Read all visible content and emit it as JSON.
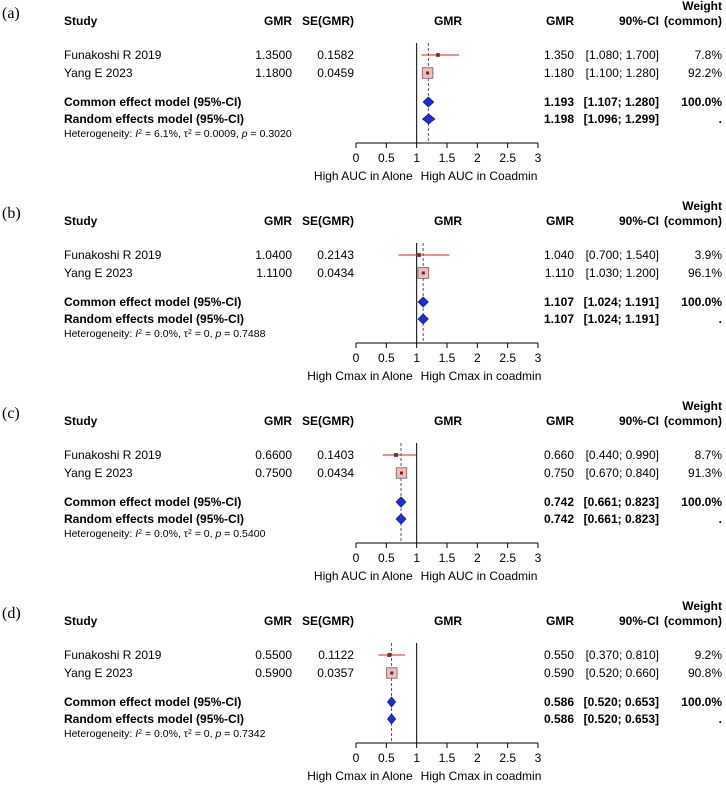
{
  "headers": {
    "study": "Study",
    "gmr": "GMR",
    "se": "SE(GMR)",
    "plot": "GMR",
    "gmr_right": "GMR",
    "ci": "90%-CI",
    "weight_line1": "Weight",
    "weight_line2": "(common)"
  },
  "chart_data": [
    {
      "type": "forest",
      "panel_label": "(a)",
      "xlim": [
        0,
        3
      ],
      "ticks": [
        "0",
        "0.5",
        "1",
        "1.5",
        "2",
        "2.5",
        "3"
      ],
      "reference_line": 1,
      "axis_left_label": "High AUC in Alone",
      "axis_right_label": "High AUC in Coadmin",
      "studies": [
        {
          "name": "Funakoshi R 2019",
          "gmr": "1.3500",
          "se": "0.1582",
          "est": 1.35,
          "lo": 1.08,
          "hi": 1.7,
          "est_text": "1.350",
          "ci_text": "[1.080; 1.700]",
          "weight": "7.8%",
          "w": 7.8
        },
        {
          "name": "Yang E 2023",
          "gmr": "1.1800",
          "se": "0.0459",
          "est": 1.18,
          "lo": 1.1,
          "hi": 1.28,
          "est_text": "1.180",
          "ci_text": "[1.100; 1.280]",
          "weight": "92.2%",
          "w": 92.2
        }
      ],
      "common": {
        "label": "Common effect model (95%-CI)",
        "est": 1.193,
        "lo": 1.107,
        "hi": 1.28,
        "est_text": "1.193",
        "ci_text": "[1.107; 1.280]",
        "weight": "100.0%"
      },
      "random": {
        "label": "Random effects model (95%-CI)",
        "est": 1.198,
        "lo": 1.096,
        "hi": 1.299,
        "est_text": "1.198",
        "ci_text": "[1.096; 1.299]",
        "weight": "."
      },
      "heterogeneity": {
        "prefix": "Heterogeneity: ",
        "i2": "6.1%",
        "tau2": "0.0009",
        "p": "0.3020"
      }
    },
    {
      "type": "forest",
      "panel_label": "(b)",
      "xlim": [
        0,
        3
      ],
      "ticks": [
        "0",
        "0.5",
        "1",
        "1.5",
        "2",
        "2.5",
        "3"
      ],
      "reference_line": 1,
      "axis_left_label": "High Cmax in Alone",
      "axis_right_label": "High Cmax in coadmin",
      "studies": [
        {
          "name": "Funakoshi R 2019",
          "gmr": "1.0400",
          "se": "0.2143",
          "est": 1.04,
          "lo": 0.7,
          "hi": 1.54,
          "est_text": "1.040",
          "ci_text": "[0.700; 1.540]",
          "weight": "3.9%",
          "w": 3.9
        },
        {
          "name": "Yang E 2023",
          "gmr": "1.1100",
          "se": "0.0434",
          "est": 1.11,
          "lo": 1.03,
          "hi": 1.2,
          "est_text": "1.110",
          "ci_text": "[1.030; 1.200]",
          "weight": "96.1%",
          "w": 96.1
        }
      ],
      "common": {
        "label": "Common effect model (95%-CI)",
        "est": 1.107,
        "lo": 1.024,
        "hi": 1.191,
        "est_text": "1.107",
        "ci_text": "[1.024; 1.191]",
        "weight": "100.0%"
      },
      "random": {
        "label": "Random effects model (95%-CI)",
        "est": 1.107,
        "lo": 1.024,
        "hi": 1.191,
        "est_text": "1.107",
        "ci_text": "[1.024; 1.191]",
        "weight": "."
      },
      "heterogeneity": {
        "prefix": "Heterogeneity: ",
        "i2": "0.0%",
        "tau2": "0",
        "p": "0.7488"
      }
    },
    {
      "type": "forest",
      "panel_label": "(c)",
      "xlim": [
        0,
        3
      ],
      "ticks": [
        "0",
        "0.5",
        "1",
        "1.5",
        "2",
        "2.5",
        "3"
      ],
      "reference_line": 1,
      "axis_left_label": "High AUC in Alone",
      "axis_right_label": "High AUC in Coadmin",
      "studies": [
        {
          "name": "Funakoshi R 2019",
          "gmr": "0.6600",
          "se": "0.1403",
          "est": 0.66,
          "lo": 0.44,
          "hi": 0.99,
          "est_text": "0.660",
          "ci_text": "[0.440; 0.990]",
          "weight": "8.7%",
          "w": 8.7
        },
        {
          "name": "Yang E 2023",
          "gmr": "0.7500",
          "se": "0.0434",
          "est": 0.75,
          "lo": 0.67,
          "hi": 0.84,
          "est_text": "0.750",
          "ci_text": "[0.670; 0.840]",
          "weight": "91.3%",
          "w": 91.3
        }
      ],
      "common": {
        "label": "Common effect model (95%-CI)",
        "est": 0.742,
        "lo": 0.661,
        "hi": 0.823,
        "est_text": "0.742",
        "ci_text": "[0.661; 0.823]",
        "weight": "100.0%"
      },
      "random": {
        "label": "Random effects model (95%-CI)",
        "est": 0.742,
        "lo": 0.661,
        "hi": 0.823,
        "est_text": "0.742",
        "ci_text": "[0.661; 0.823]",
        "weight": "."
      },
      "heterogeneity": {
        "prefix": "Heterogeneity: ",
        "i2": "0.0%",
        "tau2": "0",
        "p": "0.5400"
      }
    },
    {
      "type": "forest",
      "panel_label": "(d)",
      "xlim": [
        0,
        3
      ],
      "ticks": [
        "0",
        "0.5",
        "1",
        "1.5",
        "2",
        "2.5",
        "3"
      ],
      "reference_line": 1,
      "axis_left_label": "High Cmax in Alone",
      "axis_right_label": "High Cmax in coadmin",
      "studies": [
        {
          "name": "Funakoshi R 2019",
          "gmr": "0.5500",
          "se": "0.1122",
          "est": 0.55,
          "lo": 0.37,
          "hi": 0.81,
          "est_text": "0.550",
          "ci_text": "[0.370; 0.810]",
          "weight": "9.2%",
          "w": 9.2
        },
        {
          "name": "Yang E 2023",
          "gmr": "0.5900",
          "se": "0.0357",
          "est": 0.59,
          "lo": 0.52,
          "hi": 0.66,
          "est_text": "0.590",
          "ci_text": "[0.520; 0.660]",
          "weight": "90.8%",
          "w": 90.8
        }
      ],
      "common": {
        "label": "Common effect model (95%-CI)",
        "est": 0.586,
        "lo": 0.52,
        "hi": 0.653,
        "est_text": "0.586",
        "ci_text": "[0.520; 0.653]",
        "weight": "100.0%"
      },
      "random": {
        "label": "Random effects model (95%-CI)",
        "est": 0.586,
        "lo": 0.52,
        "hi": 0.653,
        "est_text": "0.586",
        "ci_text": "[0.520; 0.653]",
        "weight": "."
      },
      "heterogeneity": {
        "prefix": "Heterogeneity: ",
        "i2": "0.0%",
        "tau2": "0",
        "p": "0.7342"
      }
    }
  ]
}
